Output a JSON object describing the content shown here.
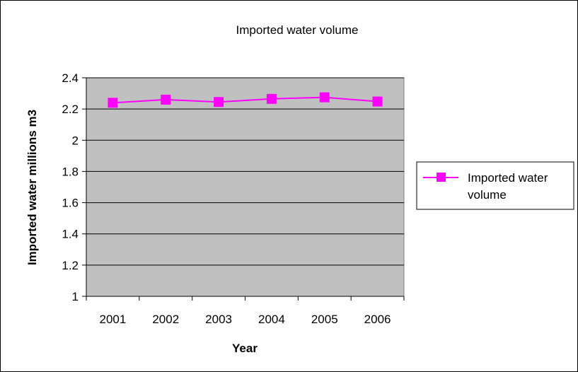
{
  "chart_data": {
    "type": "line",
    "title": "Imported water volume",
    "xlabel": "Year",
    "ylabel": "Imported water millions m3",
    "categories": [
      "2001",
      "2002",
      "2003",
      "2004",
      "2005",
      "2006"
    ],
    "ylim": [
      1,
      2.4
    ],
    "yticks": [
      "1",
      "1.2",
      "1.4",
      "1.6",
      "1.8",
      "2",
      "2.2",
      "2.4"
    ],
    "grid": true,
    "legend_position": "right",
    "series": [
      {
        "name": "Imported water volume",
        "values": [
          2.24,
          2.26,
          2.245,
          2.265,
          2.275,
          2.248
        ],
        "color": "#FF00FF",
        "marker": "square"
      }
    ],
    "colors": {
      "plot_background": "#C0C0C0",
      "gridline": "#000000"
    }
  }
}
